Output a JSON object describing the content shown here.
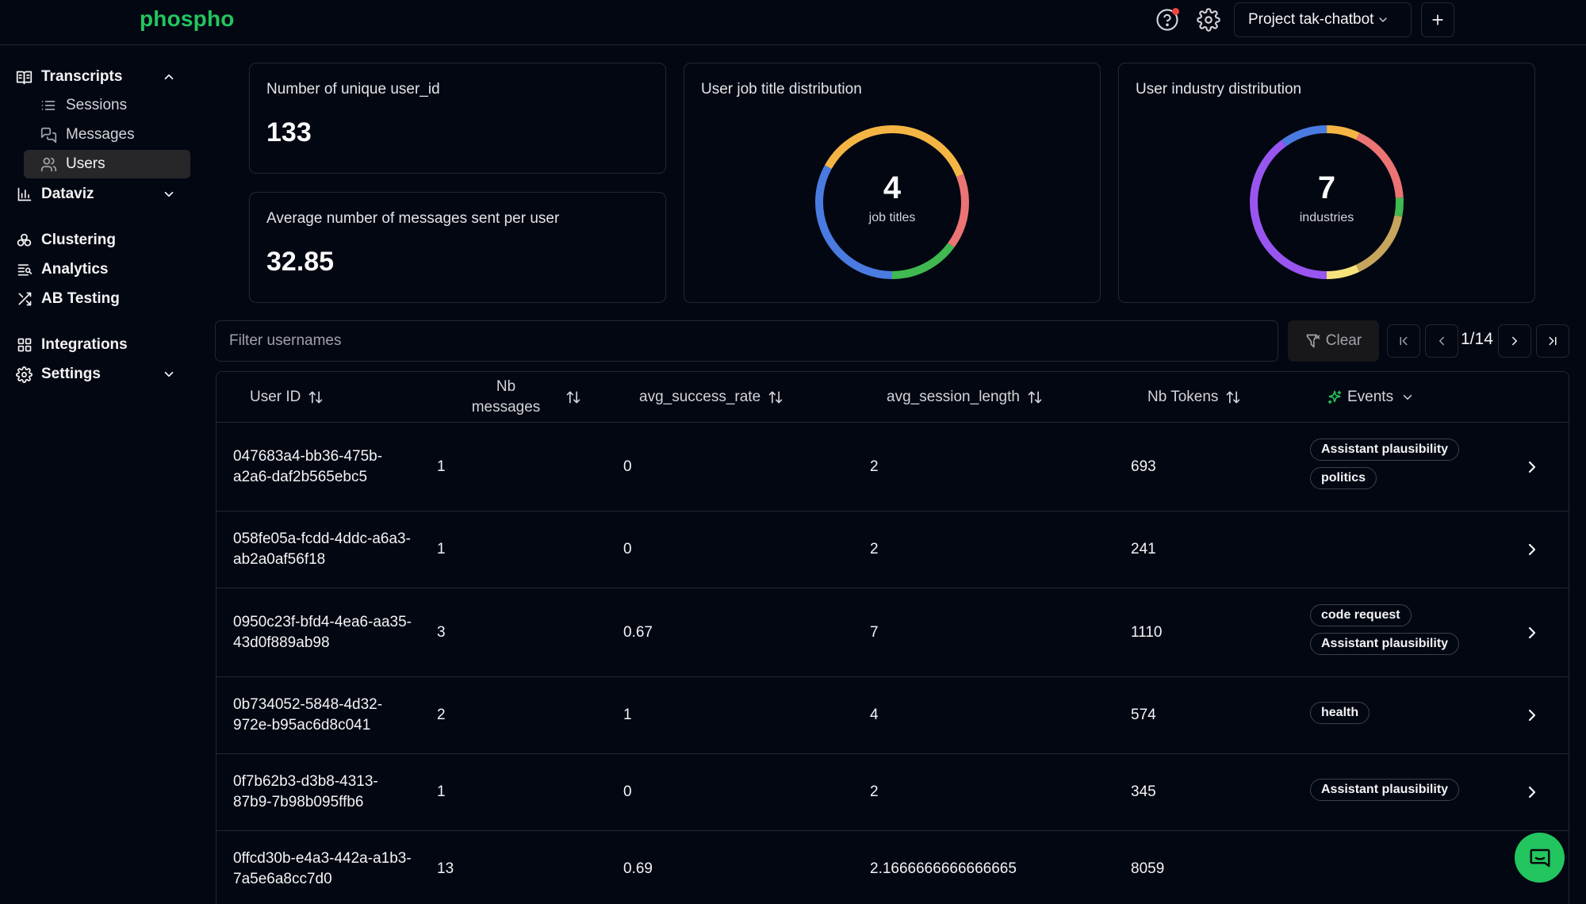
{
  "header": {
    "logo": "phospho",
    "project_label": "Project tak-chatbot"
  },
  "sidebar": {
    "transcripts": "Transcripts",
    "sub_items": [
      "Sessions",
      "Messages",
      "Users"
    ],
    "active_sub_item": "Users",
    "dataviz": "Dataviz",
    "clustering": "Clustering",
    "analytics": "Analytics",
    "ab_testing": "AB Testing",
    "integrations": "Integrations",
    "settings": "Settings"
  },
  "cards": {
    "unique_users": {
      "title": "Number of unique user_id",
      "value": "133"
    },
    "avg_messages": {
      "title": "Average number of messages sent per user",
      "value": "32.85"
    },
    "job_title": {
      "title": "User job title distribution",
      "count": "4",
      "label": "job titles",
      "segments": [
        {
          "color": "#4a7be0",
          "fraction": 0.33
        },
        {
          "color": "#f5b544",
          "fraction": 0.36
        },
        {
          "color": "#ec7474",
          "fraction": 0.16
        },
        {
          "color": "#3fb950",
          "fraction": 0.15
        }
      ]
    },
    "industry": {
      "title": "User industry distribution",
      "count": "7",
      "label": "industries",
      "segments": [
        {
          "color": "#9955f0",
          "fraction": 0.4
        },
        {
          "color": "#4a7be0",
          "fraction": 0.1
        },
        {
          "color": "#f5b544",
          "fraction": 0.07
        },
        {
          "color": "#ec7474",
          "fraction": 0.17
        },
        {
          "color": "#3fb950",
          "fraction": 0.04
        },
        {
          "color": "#c8a55c",
          "fraction": 0.15
        },
        {
          "color": "#f5e27a",
          "fraction": 0.07
        }
      ]
    }
  },
  "filter": {
    "placeholder": "Filter usernames",
    "clear_label": "Clear",
    "page_indicator": "1/14"
  },
  "table": {
    "columns": {
      "user_id": "User ID",
      "nb_messages": "Nb messages",
      "avg_success_rate": "avg_success_rate",
      "avg_session_length": "avg_session_length",
      "nb_tokens": "Nb Tokens",
      "events": "Events"
    },
    "rows": [
      {
        "user_id": "047683a4-bb36-475b-a2a6-daf2b565ebc5",
        "nb_messages": "1",
        "avg_success_rate": "0",
        "avg_session_length": "2",
        "nb_tokens": "693",
        "events": [
          "Assistant plausibility",
          "politics"
        ]
      },
      {
        "user_id": "058fe05a-fcdd-4ddc-a6a3-ab2a0af56f18",
        "nb_messages": "1",
        "avg_success_rate": "0",
        "avg_session_length": "2",
        "nb_tokens": "241",
        "events": []
      },
      {
        "user_id": "0950c23f-bfd4-4ea6-aa35-43d0f889ab98",
        "nb_messages": "3",
        "avg_success_rate": "0.67",
        "avg_session_length": "7",
        "nb_tokens": "1110",
        "events": [
          "code request",
          "Assistant plausibility"
        ]
      },
      {
        "user_id": "0b734052-5848-4d32-972e-b95ac6d8c041",
        "nb_messages": "2",
        "avg_success_rate": "1",
        "avg_session_length": "4",
        "nb_tokens": "574",
        "events": [
          "health"
        ]
      },
      {
        "user_id": "0f7b62b3-d3b8-4313-87b9-7b98b095ffb6",
        "nb_messages": "1",
        "avg_success_rate": "0",
        "avg_session_length": "2",
        "nb_tokens": "345",
        "events": [
          "Assistant plausibility"
        ]
      },
      {
        "user_id": "0ffcd30b-e4a3-442a-a1b3-7a5e6a8cc7d0",
        "nb_messages": "13",
        "avg_success_rate": "0.69",
        "avg_session_length": "2.1666666666666665",
        "nb_tokens": "8059",
        "events": []
      }
    ]
  },
  "colors": {
    "brand": "#22c55e",
    "background": "#030712",
    "border": "#27272a"
  },
  "icons": [
    "help-icon",
    "settings-gear-icon",
    "chevron-down-icon",
    "plus-icon",
    "book-icon",
    "list-icon",
    "messages-icon",
    "users-icon",
    "bar-chart-icon",
    "cluster-icon",
    "analytics-icon",
    "shuffle-icon",
    "grid-icon",
    "gear-icon",
    "filter-x-icon",
    "first-page-icon",
    "prev-page-icon",
    "next-page-icon",
    "last-page-icon",
    "sort-icon",
    "sparkle-icon",
    "chevron-right-icon",
    "chat-icon"
  ]
}
